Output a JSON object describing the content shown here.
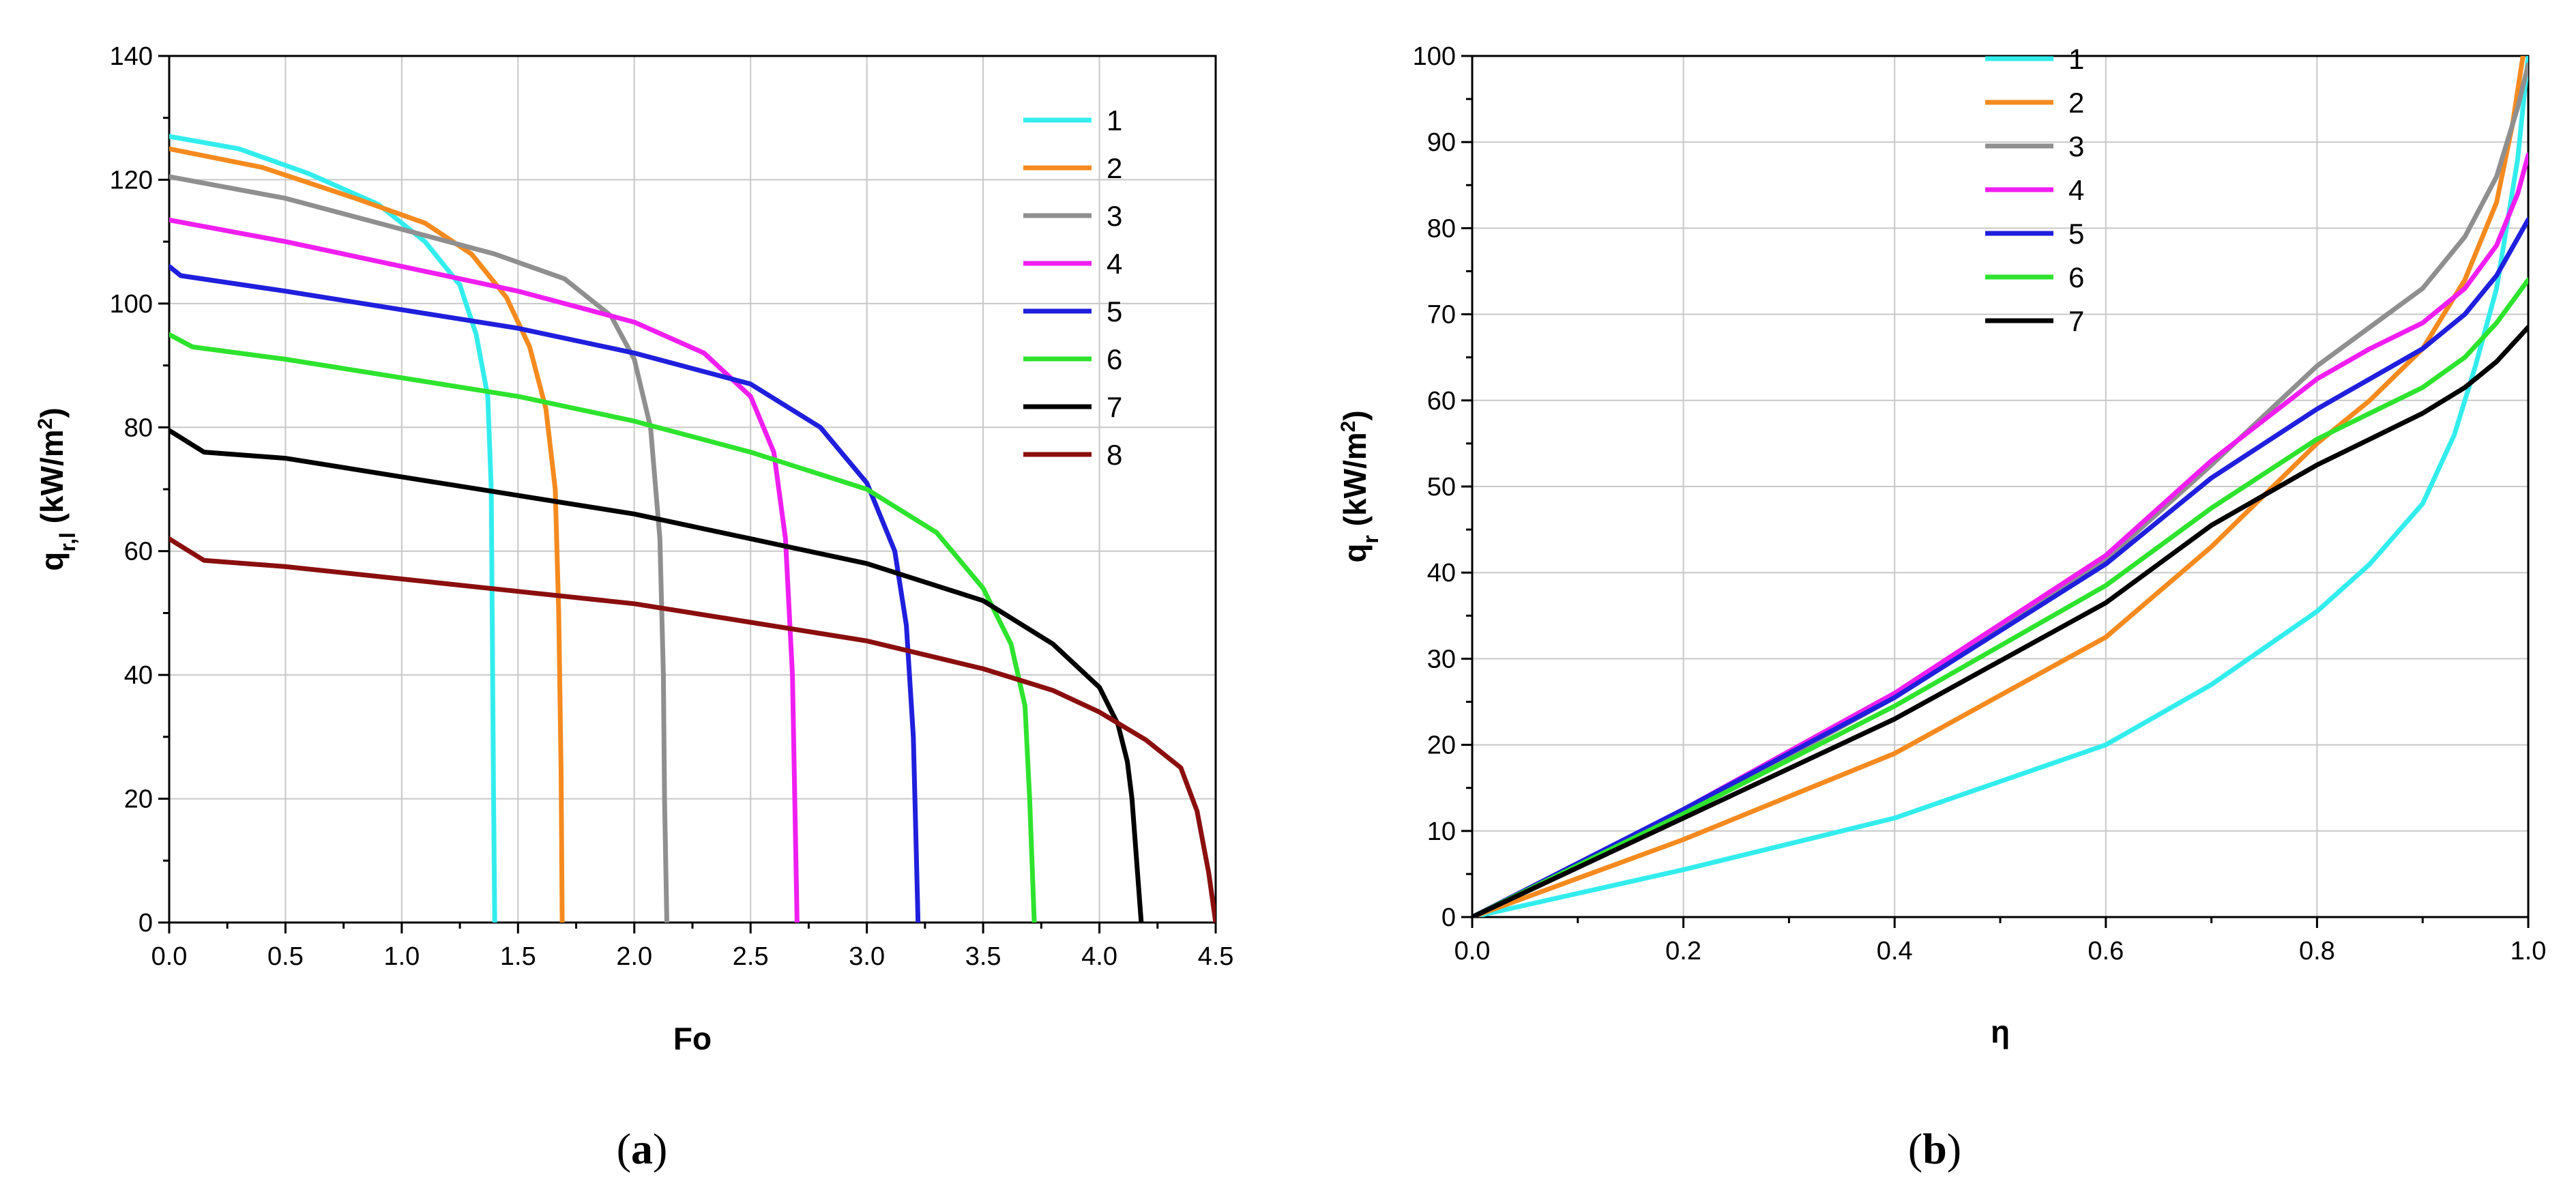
{
  "chart_data": [
    {
      "type": "line",
      "panel": "a",
      "caption": {
        "open": "(",
        "letter": "a",
        "close": ")"
      },
      "xlabel": "Fo",
      "ylabel": {
        "main": "q",
        "sub": "r,l",
        "unit_main": " (kW/m",
        "unit_sup": "2",
        "unit_close": ")"
      },
      "xlim": [
        0,
        4.5
      ],
      "ylim": [
        0,
        140
      ],
      "xticks": [
        0,
        0.5,
        1,
        1.5,
        2,
        2.5,
        3,
        3.5,
        4,
        4.5
      ],
      "xtick_labels": [
        "0.0",
        "0.5",
        "1.0",
        "1.5",
        "2.0",
        "2.5",
        "3.0",
        "3.5",
        "4.0",
        "4.5"
      ],
      "yticks": [
        0,
        20,
        40,
        60,
        80,
        100,
        120,
        140
      ],
      "ytick_labels": [
        "0",
        "20",
        "40",
        "60",
        "80",
        "100",
        "120",
        "140"
      ],
      "grid": true,
      "legend_position": "top-right",
      "series": [
        {
          "name": "1",
          "color": "#33eded",
          "points": [
            [
              0,
              127
            ],
            [
              0.3,
              125
            ],
            [
              0.6,
              121
            ],
            [
              0.9,
              116
            ],
            [
              1.1,
              110
            ],
            [
              1.25,
              103
            ],
            [
              1.32,
              95
            ],
            [
              1.37,
              85
            ],
            [
              1.385,
              70
            ],
            [
              1.39,
              45
            ],
            [
              1.395,
              20
            ],
            [
              1.4,
              0
            ]
          ]
        },
        {
          "name": "2",
          "color": "#f58a1f",
          "points": [
            [
              0,
              125
            ],
            [
              0.4,
              122
            ],
            [
              0.8,
              117
            ],
            [
              1.1,
              113
            ],
            [
              1.3,
              108
            ],
            [
              1.45,
              101
            ],
            [
              1.55,
              93
            ],
            [
              1.62,
              83
            ],
            [
              1.66,
              70
            ],
            [
              1.675,
              50
            ],
            [
              1.685,
              25
            ],
            [
              1.69,
              0
            ]
          ]
        },
        {
          "name": "3",
          "color": "#8f8f8f",
          "points": [
            [
              0,
              120.5
            ],
            [
              0.5,
              117
            ],
            [
              1.0,
              112
            ],
            [
              1.4,
              108
            ],
            [
              1.7,
              104
            ],
            [
              1.9,
              98
            ],
            [
              2.0,
              91
            ],
            [
              2.07,
              80
            ],
            [
              2.11,
              62
            ],
            [
              2.125,
              40
            ],
            [
              2.13,
              20
            ],
            [
              2.14,
              0
            ]
          ]
        },
        {
          "name": "4",
          "color": "#f01ef0",
          "points": [
            [
              0,
              113.5
            ],
            [
              0.5,
              110
            ],
            [
              1.0,
              106
            ],
            [
              1.5,
              102
            ],
            [
              2.0,
              97
            ],
            [
              2.3,
              92
            ],
            [
              2.5,
              85
            ],
            [
              2.6,
              76
            ],
            [
              2.65,
              62
            ],
            [
              2.68,
              40
            ],
            [
              2.69,
              20
            ],
            [
              2.7,
              0
            ]
          ]
        },
        {
          "name": "5",
          "color": "#1f1fdd",
          "points": [
            [
              0,
              106
            ],
            [
              0.05,
              104.5
            ],
            [
              0.5,
              102
            ],
            [
              1.0,
              99
            ],
            [
              1.5,
              96
            ],
            [
              2.0,
              92
            ],
            [
              2.5,
              87
            ],
            [
              2.8,
              80
            ],
            [
              3.0,
              71
            ],
            [
              3.12,
              60
            ],
            [
              3.17,
              48
            ],
            [
              3.2,
              30
            ],
            [
              3.21,
              15
            ],
            [
              3.22,
              0
            ]
          ]
        },
        {
          "name": "6",
          "color": "#2ee32e",
          "points": [
            [
              0,
              95
            ],
            [
              0.1,
              93
            ],
            [
              0.5,
              91
            ],
            [
              1.0,
              88
            ],
            [
              1.5,
              85
            ],
            [
              2.0,
              81
            ],
            [
              2.5,
              76
            ],
            [
              3.0,
              70
            ],
            [
              3.3,
              63
            ],
            [
              3.5,
              54
            ],
            [
              3.62,
              45
            ],
            [
              3.68,
              35
            ],
            [
              3.7,
              20
            ],
            [
              3.72,
              0
            ]
          ]
        },
        {
          "name": "7",
          "color": "#000000",
          "points": [
            [
              0,
              79.5
            ],
            [
              0.15,
              76
            ],
            [
              0.5,
              75
            ],
            [
              1.0,
              72
            ],
            [
              1.5,
              69
            ],
            [
              2.0,
              66
            ],
            [
              2.5,
              62
            ],
            [
              3.0,
              58
            ],
            [
              3.5,
              52
            ],
            [
              3.8,
              45
            ],
            [
              4.0,
              38
            ],
            [
              4.08,
              32
            ],
            [
              4.12,
              26
            ],
            [
              4.14,
              20
            ],
            [
              4.16,
              10
            ],
            [
              4.18,
              0
            ]
          ]
        },
        {
          "name": "8",
          "color": "#8b0e0e",
          "points": [
            [
              0,
              62
            ],
            [
              0.15,
              58.5
            ],
            [
              0.5,
              57.5
            ],
            [
              1.0,
              55.5
            ],
            [
              1.5,
              53.5
            ],
            [
              2.0,
              51.5
            ],
            [
              2.5,
              48.5
            ],
            [
              3.0,
              45.5
            ],
            [
              3.5,
              41
            ],
            [
              3.8,
              37.5
            ],
            [
              4.0,
              34
            ],
            [
              4.2,
              29.5
            ],
            [
              4.35,
              25
            ],
            [
              4.42,
              18
            ],
            [
              4.47,
              8
            ],
            [
              4.5,
              0
            ]
          ]
        }
      ]
    },
    {
      "type": "line",
      "panel": "b",
      "caption": {
        "open": "(",
        "letter": "b",
        "close": ")"
      },
      "xlabel": "η",
      "ylabel": {
        "main": "q",
        "sub": "r",
        "unit_main": " (kW/m",
        "unit_sup": "2",
        "unit_close": ")"
      },
      "xlim": [
        0,
        1
      ],
      "ylim": [
        0,
        100
      ],
      "xticks": [
        0,
        0.2,
        0.4,
        0.6,
        0.8,
        1.0
      ],
      "xtick_labels": [
        "0.0",
        "0.2",
        "0.4",
        "0.6",
        "0.8",
        "1.0"
      ],
      "yticks": [
        0,
        10,
        20,
        30,
        40,
        50,
        60,
        70,
        80,
        90,
        100
      ],
      "ytick_labels": [
        "0",
        "10",
        "20",
        "30",
        "40",
        "50",
        "60",
        "70",
        "80",
        "90",
        "100"
      ],
      "grid": true,
      "legend_position": "top-left",
      "series": [
        {
          "name": "1",
          "color": "#33eded",
          "points": [
            [
              0,
              0
            ],
            [
              0.2,
              5.5
            ],
            [
              0.4,
              11.5
            ],
            [
              0.6,
              20
            ],
            [
              0.7,
              27
            ],
            [
              0.8,
              35.5
            ],
            [
              0.85,
              41
            ],
            [
              0.9,
              48
            ],
            [
              0.93,
              56
            ],
            [
              0.95,
              64
            ],
            [
              0.97,
              73
            ],
            [
              0.99,
              88
            ],
            [
              1.0,
              100
            ]
          ]
        },
        {
          "name": "2",
          "color": "#f58a1f",
          "points": [
            [
              0,
              0
            ],
            [
              0.2,
              9
            ],
            [
              0.4,
              19
            ],
            [
              0.6,
              32.5
            ],
            [
              0.7,
              43
            ],
            [
              0.8,
              55
            ],
            [
              0.85,
              60
            ],
            [
              0.9,
              66
            ],
            [
              0.94,
              74
            ],
            [
              0.97,
              83
            ],
            [
              0.985,
              92
            ],
            [
              0.995,
              100
            ]
          ]
        },
        {
          "name": "3",
          "color": "#8f8f8f",
          "points": [
            [
              0,
              0
            ],
            [
              0.2,
              12
            ],
            [
              0.4,
              25.5
            ],
            [
              0.6,
              41.5
            ],
            [
              0.7,
              52.5
            ],
            [
              0.8,
              64
            ],
            [
              0.85,
              68.5
            ],
            [
              0.9,
              73
            ],
            [
              0.94,
              79
            ],
            [
              0.97,
              86
            ],
            [
              0.99,
              94
            ],
            [
              1.0,
              99
            ]
          ]
        },
        {
          "name": "4",
          "color": "#f01ef0",
          "points": [
            [
              0,
              0
            ],
            [
              0.2,
              12.5
            ],
            [
              0.4,
              26
            ],
            [
              0.6,
              42
            ],
            [
              0.7,
              53
            ],
            [
              0.8,
              62.5
            ],
            [
              0.85,
              66
            ],
            [
              0.9,
              69
            ],
            [
              0.94,
              73
            ],
            [
              0.97,
              78
            ],
            [
              0.99,
              84
            ],
            [
              1.0,
              88.5
            ]
          ]
        },
        {
          "name": "5",
          "color": "#1f1fdd",
          "points": [
            [
              0,
              0
            ],
            [
              0.2,
              12.5
            ],
            [
              0.4,
              25.5
            ],
            [
              0.6,
              41
            ],
            [
              0.7,
              51
            ],
            [
              0.8,
              59
            ],
            [
              0.85,
              62.5
            ],
            [
              0.9,
              66
            ],
            [
              0.94,
              70
            ],
            [
              0.97,
              74.5
            ],
            [
              1.0,
              81
            ]
          ]
        },
        {
          "name": "6",
          "color": "#2ee32e",
          "points": [
            [
              0,
              0
            ],
            [
              0.2,
              12
            ],
            [
              0.4,
              24.5
            ],
            [
              0.6,
              38.5
            ],
            [
              0.7,
              47.5
            ],
            [
              0.8,
              55.5
            ],
            [
              0.85,
              58.5
            ],
            [
              0.9,
              61.5
            ],
            [
              0.94,
              65
            ],
            [
              0.97,
              69
            ],
            [
              1.0,
              74
            ]
          ]
        },
        {
          "name": "7",
          "color": "#000000",
          "points": [
            [
              0,
              0
            ],
            [
              0.2,
              11.5
            ],
            [
              0.4,
              23
            ],
            [
              0.6,
              36.5
            ],
            [
              0.7,
              45.5
            ],
            [
              0.8,
              52.5
            ],
            [
              0.85,
              55.5
            ],
            [
              0.9,
              58.5
            ],
            [
              0.94,
              61.5
            ],
            [
              0.97,
              64.5
            ],
            [
              1.0,
              68.5
            ]
          ]
        }
      ]
    }
  ]
}
